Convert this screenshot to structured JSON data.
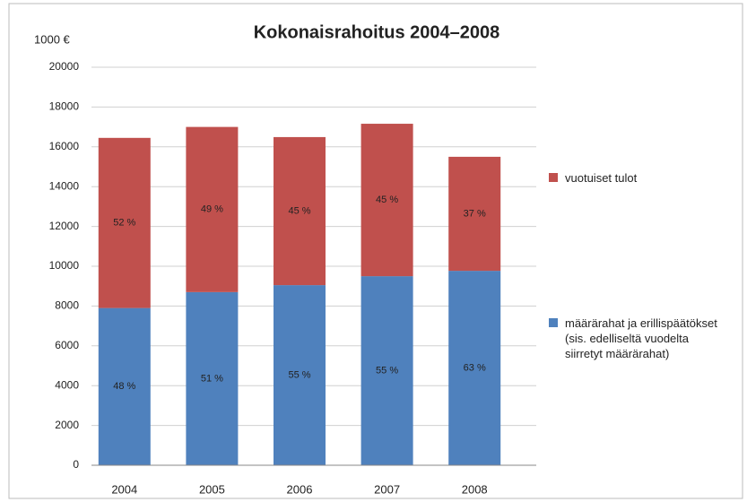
{
  "chart_data": {
    "type": "stacked_bar",
    "title": "Kokonaisrahoitus 2004–2008",
    "y_label": "1000 €",
    "categories": [
      "2004",
      "2005",
      "2006",
      "2007",
      "2008"
    ],
    "series": [
      {
        "name": "määrärahat ja erillispäätökset (sis. edelliseltä vuodelta siirretyt määrärahat)",
        "color": "#4f81bd",
        "values": [
          7900,
          8700,
          9050,
          9500,
          9770
        ],
        "labels": [
          "48 %",
          "51 %",
          "55 %",
          "55 %",
          "63 %"
        ]
      },
      {
        "name": "vuotuiset tulot",
        "color": "#c0504d",
        "values": [
          8550,
          8300,
          7440,
          7660,
          5730
        ],
        "labels": [
          "52 %",
          "49 %",
          "45 %",
          "45 %",
          "37 %"
        ]
      }
    ],
    "ylim": [
      0,
      20000
    ],
    "yticks": [
      0,
      2000,
      4000,
      6000,
      8000,
      10000,
      12000,
      14000,
      16000,
      18000,
      20000
    ],
    "grid": true,
    "legend": "right"
  }
}
